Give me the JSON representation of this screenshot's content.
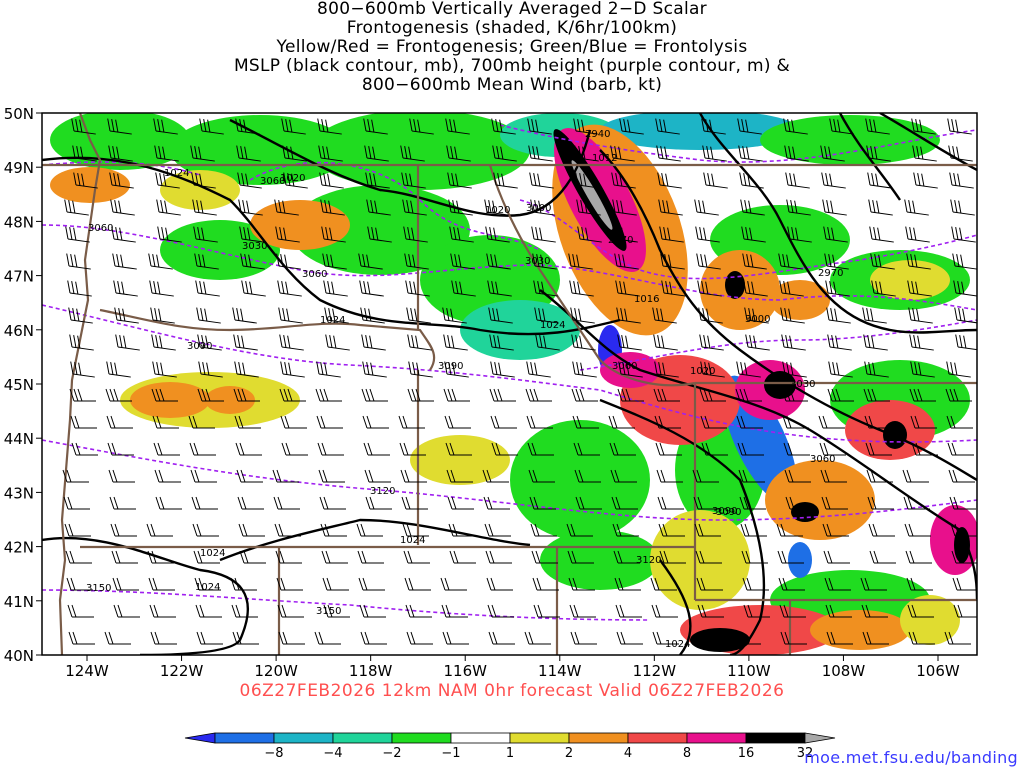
{
  "title_lines": [
    "800−600mb Vertically Averaged 2−D Scalar",
    "Frontogenesis (shaded, K/6hr/100km)",
    "Yellow/Red = Frontogenesis;  Green/Blue = Frontolysis",
    "MSLP (black contour, mb), 700mb height (purple contour, m) &",
    "800−600mb Mean Wind (barb, kt)"
  ],
  "lat_labels": [
    "50N",
    "49N",
    "48N",
    "47N",
    "46N",
    "45N",
    "44N",
    "43N",
    "42N",
    "41N",
    "40N"
  ],
  "lon_labels": [
    "124W",
    "122W",
    "120W",
    "118W",
    "116W",
    "114W",
    "112W",
    "110W",
    "108W",
    "106W"
  ],
  "mslp_labels": [
    "1024",
    "1020",
    "1020",
    "1012",
    "1016",
    "1024",
    "1024",
    "1020",
    "1024",
    "1024",
    "1024",
    "1024"
  ],
  "height_labels": [
    "3060",
    "3060",
    "3030",
    "3060",
    "3000",
    "2970",
    "2940",
    "3030",
    "3000",
    "3060",
    "3090",
    "3090",
    "3030",
    "3060",
    "3090",
    "3120",
    "3120",
    "3150",
    "3150",
    "2970",
    "3090"
  ],
  "valid_text": "06Z27FEB2026 12km NAM 0hr forecast Valid 06Z27FEB2026",
  "colorbar": {
    "labels": [
      "−8",
      "−4",
      "−2",
      "−1",
      "1",
      "2",
      "4",
      "8",
      "16",
      "32"
    ],
    "colors": [
      "#2a2af0",
      "#1e6fe6",
      "#1db4c6",
      "#20d49a",
      "#20dc20",
      "#ffffff",
      "#e0dc30",
      "#f09020",
      "#f04848",
      "#e8108c",
      "#000000",
      "#a8a8a8"
    ]
  },
  "credit": "moe.met.fsu.edu/banding"
}
